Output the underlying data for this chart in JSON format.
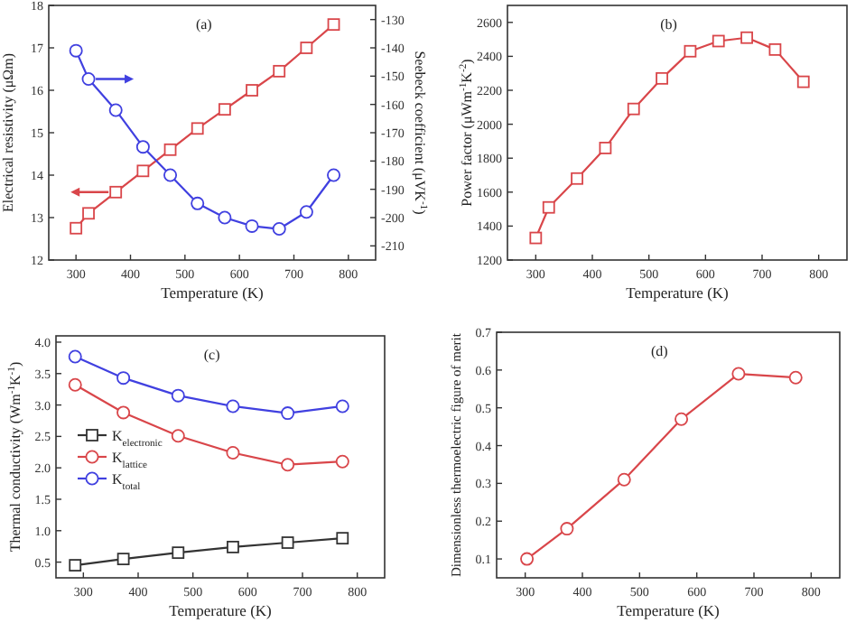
{
  "chart_data": [
    {
      "type": "line",
      "annotations": [
        "(a)"
      ],
      "xlabel": "Temperature (K)",
      "ylabel": "Electrical resistivity (μΩm)",
      "y2label": "Seebeck coefficient (μVK$^{-1}$)",
      "x": [
        300,
        323,
        373,
        423,
        473,
        523,
        573,
        623,
        673,
        723,
        773
      ],
      "xlim": [
        250,
        850
      ],
      "xticks": [
        300,
        400,
        500,
        600,
        700,
        800
      ],
      "ylim": [
        12,
        18
      ],
      "yticks": [
        12,
        13,
        14,
        15,
        16,
        17,
        18
      ],
      "y2lim": [
        -215,
        -125
      ],
      "y2ticks": [
        -130,
        -140,
        -150,
        -160,
        -170,
        -180,
        -190,
        -200,
        -210
      ],
      "legend": false,
      "series": [
        {
          "color": "#d9464a",
          "marker": "square",
          "values": [
            12.75,
            13.1,
            13.6,
            14.1,
            14.6,
            15.1,
            15.55,
            16.0,
            16.45,
            17.0,
            17.55
          ]
        },
        {
          "color": "#4040e0",
          "marker": "circle",
          "axis": "y2",
          "values": [
            -141,
            -151,
            -162,
            -175,
            -185,
            -195,
            -200,
            -203,
            -204,
            -198,
            -185
          ]
        }
      ]
    },
    {
      "type": "line",
      "annotations": [
        "(b)"
      ],
      "xlabel": "Temperature (K)",
      "ylabel": "Power factor (μWm$^{-1}$K$^{-2}$)",
      "x": [
        300,
        323,
        373,
        423,
        473,
        523,
        573,
        623,
        673,
        723,
        773
      ],
      "xlim": [
        250,
        850
      ],
      "xticks": [
        300,
        400,
        500,
        600,
        700,
        800
      ],
      "ylim": [
        1200,
        2700
      ],
      "yticks": [
        1200,
        1400,
        1600,
        1800,
        2000,
        2200,
        2400,
        2600
      ],
      "legend": false,
      "series": [
        {
          "color": "#d9464a",
          "marker": "square",
          "values": [
            1330,
            1510,
            1680,
            1860,
            2090,
            2270,
            2430,
            2490,
            2510,
            2440,
            2250
          ]
        }
      ]
    },
    {
      "type": "line",
      "annotations": [
        "(c)"
      ],
      "xlabel": "Temperature (K)",
      "ylabel": "Thermal conductivity (Wm$^{-1}$K$^{-1}$)",
      "x": [
        285,
        373,
        473,
        573,
        673,
        773
      ],
      "xlim": [
        250,
        850
      ],
      "xticks": [
        300,
        400,
        500,
        600,
        700,
        800
      ],
      "ylim": [
        0.25,
        4.1
      ],
      "yticks": [
        0.5,
        {
          "value": 1,
          "label": "1.0"
        },
        1.5,
        {
          "value": 2,
          "label": "2.0"
        },
        2.5,
        {
          "value": 3,
          "label": "3.0"
        },
        3.5,
        {
          "value": 4,
          "label": "4.0"
        }
      ],
      "legend": "left",
      "series": [
        {
          "name": "K$_{electronic}$",
          "color": "#333333",
          "marker": "square",
          "values": [
            0.45,
            0.55,
            0.65,
            0.74,
            0.81,
            0.88
          ]
        },
        {
          "name": "K$_{lattice}$",
          "color": "#d9464a",
          "marker": "circle",
          "values": [
            3.32,
            2.88,
            2.51,
            2.24,
            2.05,
            2.1
          ]
        },
        {
          "name": "K$_{total}$",
          "color": "#4040e0",
          "marker": "circle",
          "values": [
            3.77,
            3.43,
            3.15,
            2.98,
            2.87,
            2.98
          ]
        }
      ]
    },
    {
      "type": "line",
      "annotations": [
        "(d)"
      ],
      "xlabel": "Temperature (K)",
      "ylabel": "Dimensionless thermoelectric figure of merit",
      "x": [
        303,
        373,
        473,
        573,
        673,
        773
      ],
      "xlim": [
        250,
        850
      ],
      "xticks": [
        300,
        400,
        500,
        600,
        700,
        800
      ],
      "ylim": [
        0.05,
        0.7
      ],
      "yticks": [
        0.1,
        0.2,
        0.3,
        0.4,
        0.5,
        0.6,
        0.7
      ],
      "legend": false,
      "series": [
        {
          "color": "#d9464a",
          "marker": "circle",
          "values": [
            0.1,
            0.18,
            0.31,
            0.47,
            0.59,
            0.58
          ]
        }
      ]
    }
  ]
}
